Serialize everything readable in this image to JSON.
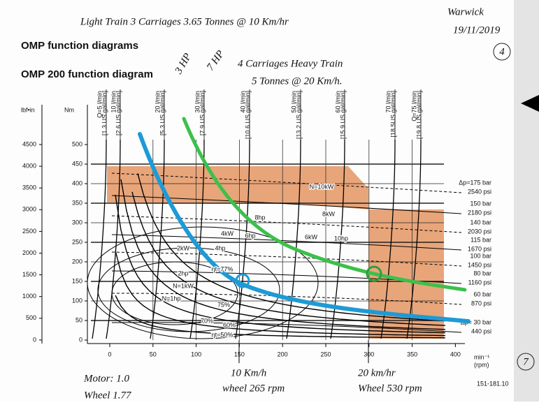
{
  "notes": {
    "line1": "Light Train  3 Carriages  3.65 Tonnes @ 10 Km/hr",
    "author": "Warwick",
    "date": "19/11/2019",
    "page_no": "4",
    "hp3": "3 HP",
    "hp7": "7 HP",
    "heavy1": "4 Carriages  Heavy Train",
    "heavy2": "5 Tonnes @ 20 Km/h.",
    "speed10": "10 Km/h",
    "wheel265": "wheel 265 rpm",
    "speed20": "20 km/hr",
    "wheel530": "Wheel 530 rpm",
    "motor": "Motor: 1.0",
    "wheel": "Wheel  1.77",
    "circle7": "7"
  },
  "header": {
    "title": "OMP function diagrams",
    "subtitle": "OMP 200 function diagram",
    "code": "151-181.10"
  },
  "axes": {
    "lbf_unit": "lbf•in",
    "nm_unit": "Nm",
    "x_unit": "min⁻¹",
    "x_unit2": "(rpm)",
    "lbf_ticks": [
      "4500",
      "4000",
      "3500",
      "3000",
      "2500",
      "2000",
      "1500",
      "1000",
      "500",
      "0"
    ],
    "nm_ticks": [
      "500",
      "450",
      "400",
      "350",
      "300",
      "250",
      "200",
      "150",
      "100",
      "50",
      "0"
    ],
    "x_ticks": [
      "0",
      "50",
      "100",
      "150",
      "200",
      "250",
      "300",
      "350",
      "400"
    ]
  },
  "flows": [
    {
      "lpm": "Q=5 l/min",
      "gpm": "[1.3 US gal/min]"
    },
    {
      "lpm": "10 l/min",
      "gpm": "[2.6 US gal/min]"
    },
    {
      "lpm": "20 l/min",
      "gpm": "[5.3 US gal/min]"
    },
    {
      "lpm": "30 l/min",
      "gpm": "[7.9 US gal/min]"
    },
    {
      "lpm": "40 l/min",
      "gpm": "[10.6 US gal/min]"
    },
    {
      "lpm": "50 l/min",
      "gpm": "[13.2 US gal/min]"
    },
    {
      "lpm": "60 l/min",
      "gpm": "[15.9 US gal/min]"
    },
    {
      "lpm": "70 l/min",
      "gpm": "[18.5US gal/min]"
    },
    {
      "lpm": "Q=75 l/min",
      "gpm": "[19.8 US gal/min]"
    }
  ],
  "pressures": [
    {
      "bar": "Δp=175 bar",
      "psi": "2540 psi"
    },
    {
      "bar": "150 bar",
      "psi": "2180 psi"
    },
    {
      "bar": "140 bar",
      "psi": "2030 psi"
    },
    {
      "bar": "115 bar",
      "psi": "1670 psi"
    },
    {
      "bar": "100 bar",
      "psi": "1450 psi"
    },
    {
      "bar": "80 bar",
      "psi": "1160 psi"
    },
    {
      "bar": "60 bar",
      "psi": "870 psi"
    },
    {
      "bar": "Δp= 30 bar",
      "psi": "440 psi"
    }
  ],
  "powers": [
    "N=10kW",
    "8kW",
    "8hp",
    "6kW",
    "10hp",
    "4kW",
    "6hp",
    "2kW",
    "4hp",
    "2hp",
    "N=1kW",
    "N=1hp",
    "ηt=77%",
    "75%",
    "70%",
    "60%",
    "ηt=50%"
  ]
}
